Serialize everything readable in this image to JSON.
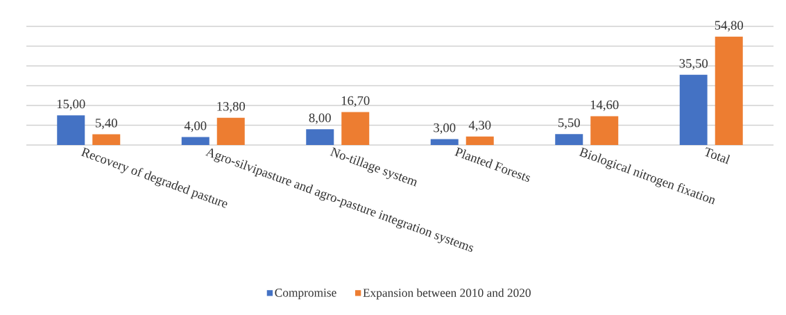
{
  "chart_data": {
    "type": "bar",
    "categories": [
      "Recovery of degraded pasture",
      "Agro-silvipasture and agro-pasture integration systems",
      "No-tillage system",
      "Planted Forests",
      "Biological nitrogen fixation",
      "Total"
    ],
    "series": [
      {
        "name": "Compromise",
        "color": "#4472c4",
        "values": [
          15,
          4,
          8,
          3,
          5.5,
          35.5
        ],
        "value_labels": [
          "15,00",
          "4,00",
          "8,00",
          "3,00",
          "5,50",
          "35,50"
        ]
      },
      {
        "name": "Expansion between 2010 and 2020",
        "color": "#ed7d31",
        "values": [
          5.4,
          13.8,
          16.7,
          4.3,
          14.6,
          54.8
        ],
        "value_labels": [
          "5,40",
          "13,80",
          "16,70",
          "4,30",
          "14,60",
          "54,80"
        ]
      }
    ],
    "ylim": [
      0,
      60
    ],
    "yticks": [
      {
        "value": 0,
        "label": null
      },
      {
        "value": 10,
        "label": null
      },
      {
        "value": 20,
        "label": null
      },
      {
        "value": 30,
        "label": null
      },
      {
        "value": 40,
        "label": null
      },
      {
        "value": 50,
        "label": null
      },
      {
        "value": 60,
        "label": null
      }
    ],
    "tick_labels": "x",
    "grid": "y",
    "legend": "bottom"
  }
}
